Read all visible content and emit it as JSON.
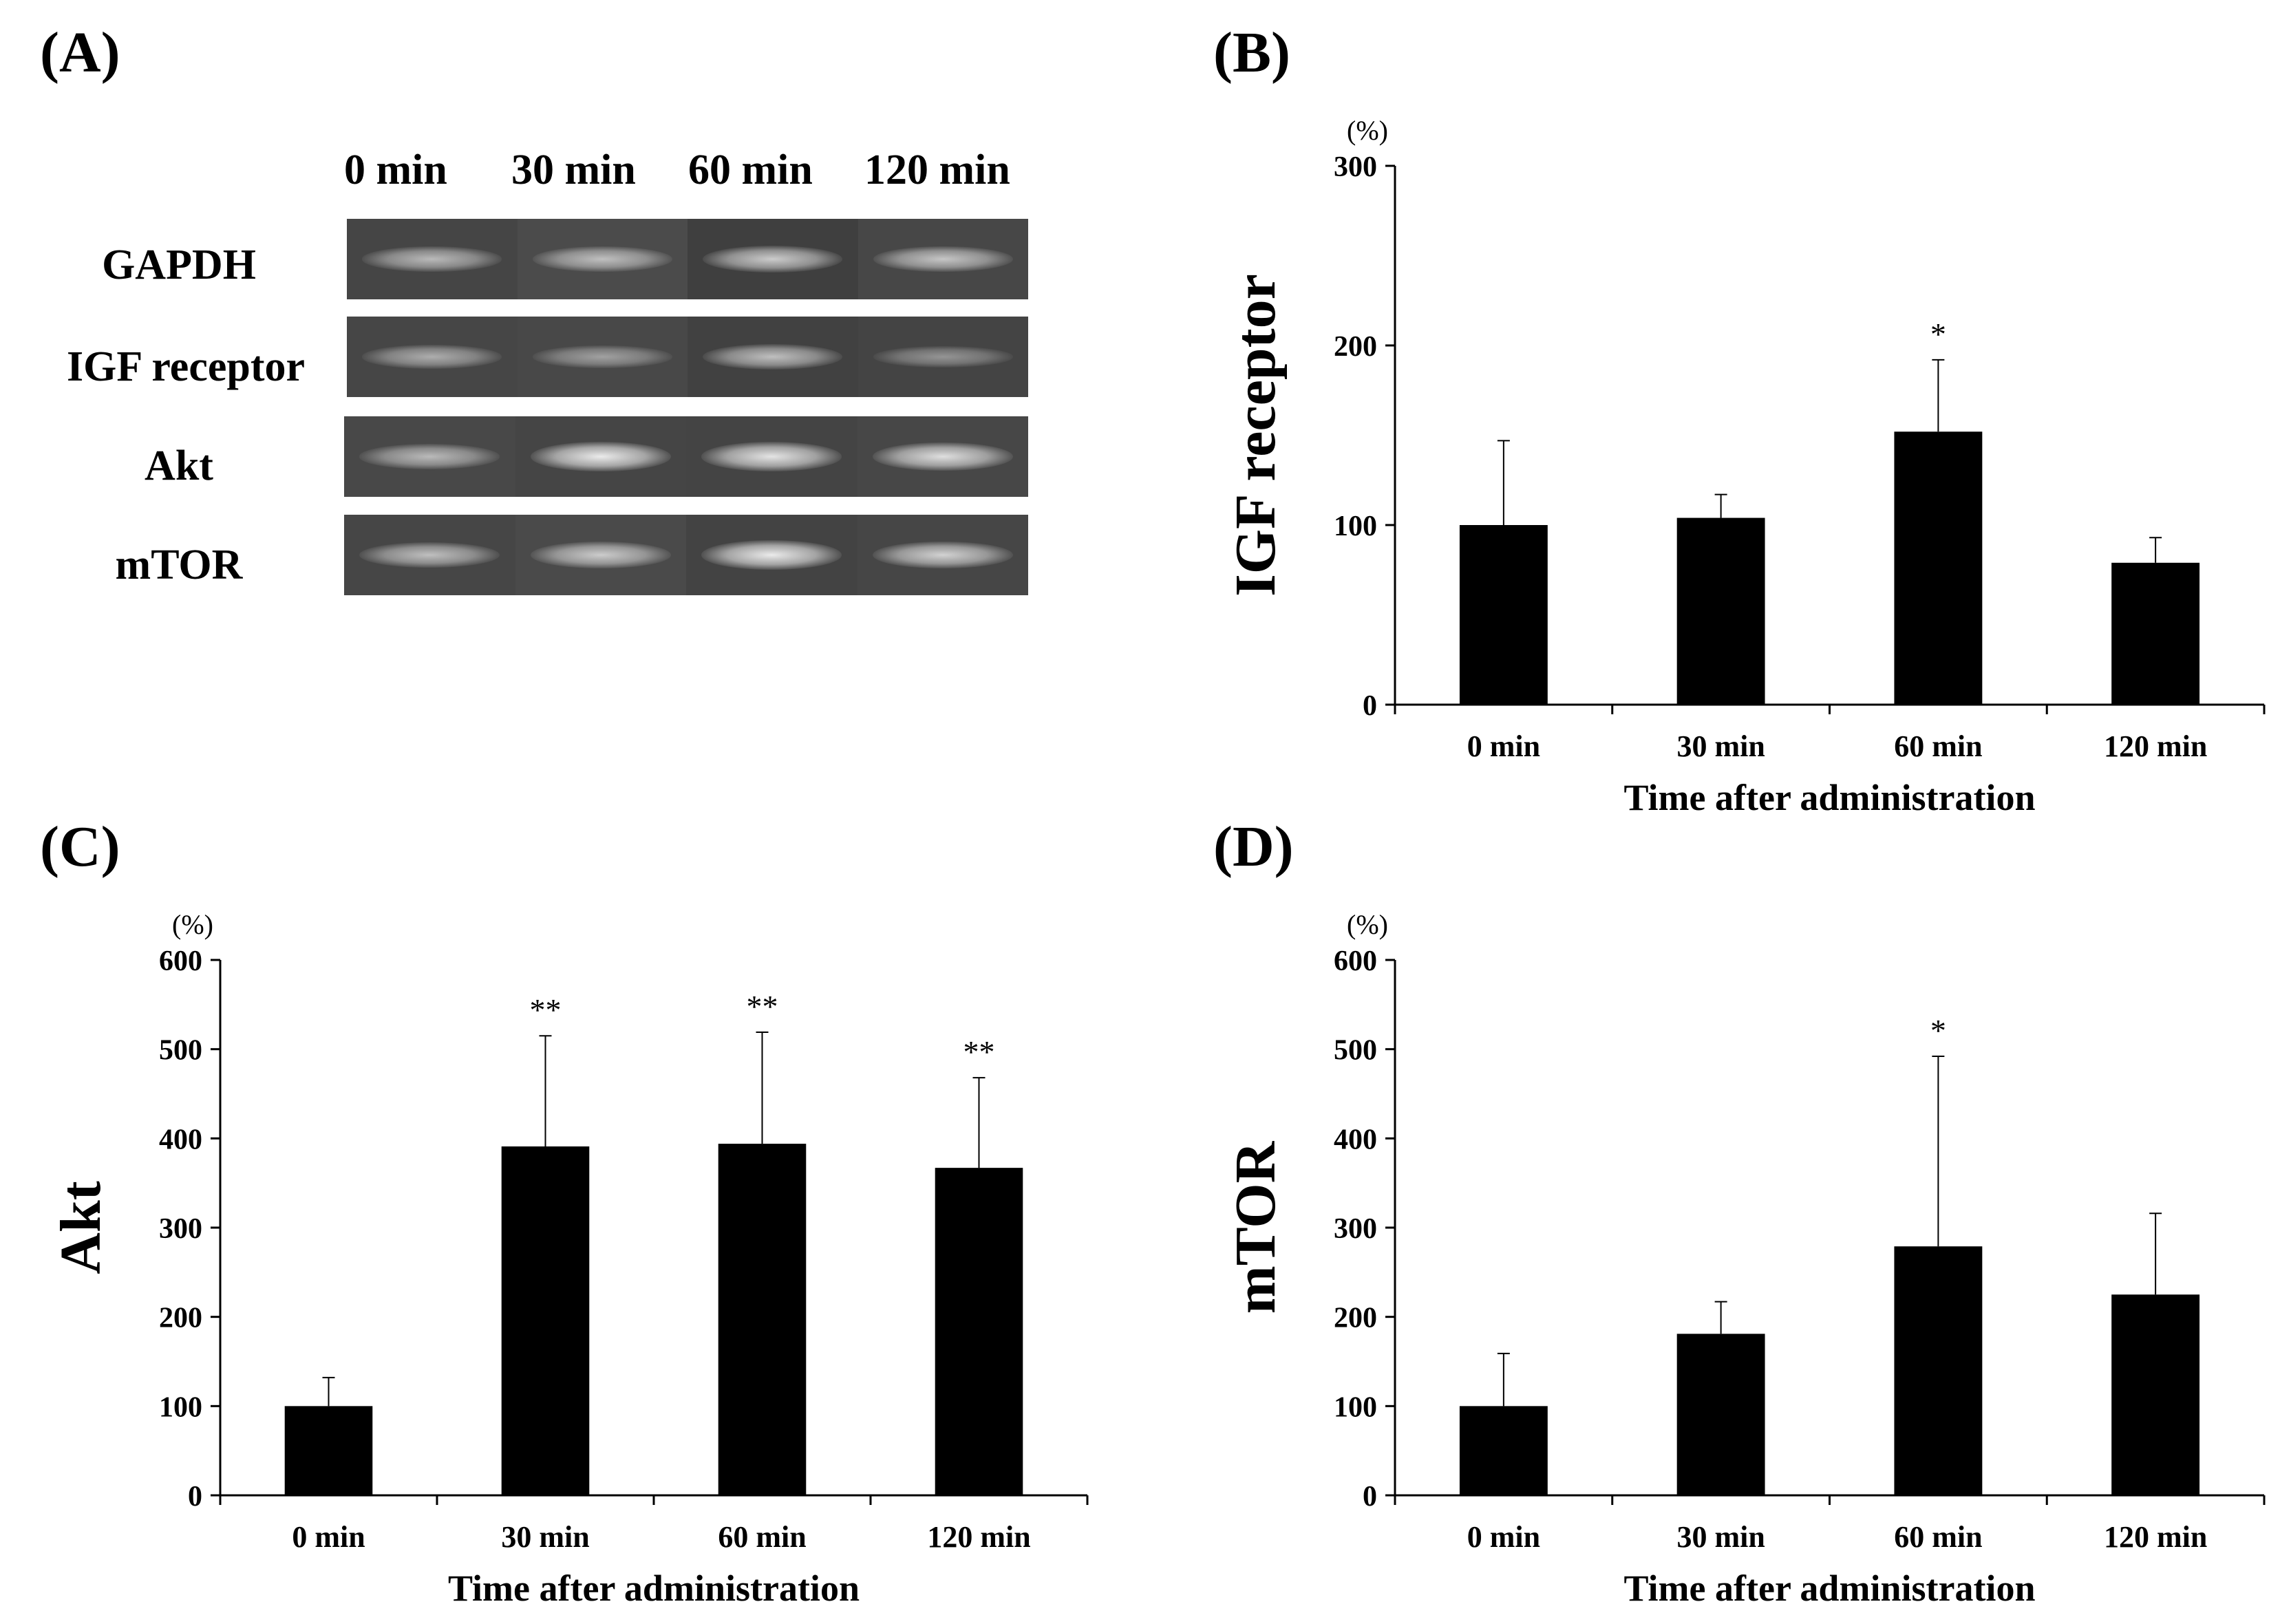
{
  "panels": {
    "a": "(A)",
    "b": "(B)",
    "c": "(C)",
    "d": "(D)"
  },
  "gel": {
    "lanes": [
      "0 min",
      "30 min",
      "60 min",
      "120 min"
    ],
    "rows": [
      {
        "label": "GAPDH",
        "band_intensity": [
          0.55,
          0.6,
          0.7,
          0.65
        ]
      },
      {
        "label": "IGF receptor",
        "band_intensity": [
          0.45,
          0.35,
          0.6,
          0.25
        ]
      },
      {
        "label": "Akt",
        "band_intensity": [
          0.55,
          0.95,
          0.9,
          0.85
        ]
      },
      {
        "label": "mTOR",
        "band_intensity": [
          0.6,
          0.7,
          0.95,
          0.75
        ]
      }
    ]
  },
  "chart_data": [
    {
      "id": "b",
      "type": "bar",
      "ylabel": "IGF receptor",
      "unit": "(%)",
      "xlabel": "Time after administration",
      "categories": [
        "0 min",
        "30 min",
        "60 min",
        "120 min"
      ],
      "values": [
        100,
        104,
        152,
        79
      ],
      "errors": [
        47,
        13,
        40,
        14
      ],
      "significance": [
        "",
        "",
        "*",
        ""
      ],
      "ylim": [
        0,
        300
      ],
      "yticks": [
        0,
        100,
        200,
        300
      ]
    },
    {
      "id": "c",
      "type": "bar",
      "ylabel": "Akt",
      "unit": "(%)",
      "xlabel": "Time after administration",
      "categories": [
        "0 min",
        "30 min",
        "60 min",
        "120 min"
      ],
      "values": [
        100,
        391,
        394,
        367
      ],
      "errors": [
        32,
        124,
        125,
        101
      ],
      "significance": [
        "",
        "**",
        "**",
        "**"
      ],
      "ylim": [
        0,
        600
      ],
      "yticks": [
        0,
        100,
        200,
        300,
        400,
        500,
        600
      ]
    },
    {
      "id": "d",
      "type": "bar",
      "ylabel": "mTOR",
      "unit": "(%)",
      "xlabel": "Time after administration",
      "categories": [
        "0 min",
        "30 min",
        "60 min",
        "120 min"
      ],
      "values": [
        100,
        181,
        279,
        225
      ],
      "errors": [
        59,
        36,
        213,
        91
      ],
      "significance": [
        "",
        "",
        "*",
        ""
      ],
      "ylim": [
        0,
        600
      ],
      "yticks": [
        0,
        100,
        200,
        300,
        400,
        500,
        600
      ]
    }
  ]
}
